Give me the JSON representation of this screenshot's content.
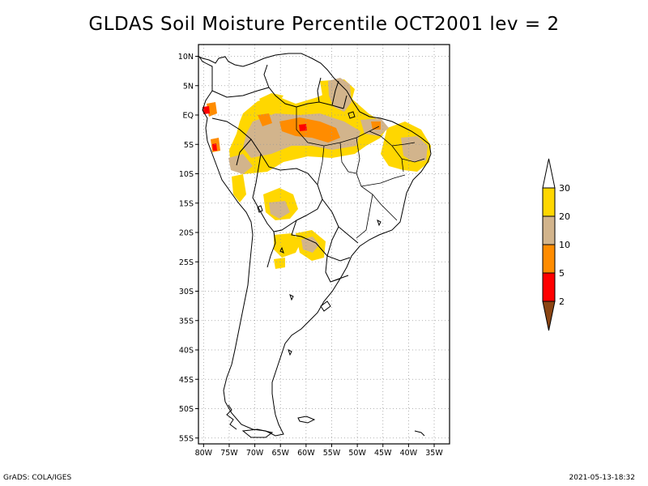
{
  "title": "GLDAS Soil Moisture Percentile OCT2001 lev = 2",
  "map": {
    "lon_range": [
      -81,
      -32
    ],
    "lat_range": [
      -56,
      12
    ],
    "lat_ticks": [
      {
        "v": 10,
        "label": "10N"
      },
      {
        "v": 5,
        "label": "5N"
      },
      {
        "v": 0,
        "label": "EQ"
      },
      {
        "v": -5,
        "label": "5S"
      },
      {
        "v": -10,
        "label": "10S"
      },
      {
        "v": -15,
        "label": "15S"
      },
      {
        "v": -20,
        "label": "20S"
      },
      {
        "v": -25,
        "label": "25S"
      },
      {
        "v": -30,
        "label": "30S"
      },
      {
        "v": -35,
        "label": "35S"
      },
      {
        "v": -40,
        "label": "40S"
      },
      {
        "v": -45,
        "label": "45S"
      },
      {
        "v": -50,
        "label": "50S"
      },
      {
        "v": -55,
        "label": "55S"
      }
    ],
    "lon_ticks": [
      {
        "v": -80,
        "label": "80W"
      },
      {
        "v": -75,
        "label": "75W"
      },
      {
        "v": -70,
        "label": "70W"
      },
      {
        "v": -65,
        "label": "65W"
      },
      {
        "v": -60,
        "label": "60W"
      },
      {
        "v": -55,
        "label": "55W"
      },
      {
        "v": -50,
        "label": "50W"
      },
      {
        "v": -45,
        "label": "45W"
      },
      {
        "v": -40,
        "label": "40W"
      },
      {
        "v": -35,
        "label": "35W"
      }
    ],
    "grid": "dotted"
  },
  "legend": {
    "bins": [
      {
        "color": "#8b4513",
        "label": "2"
      },
      {
        "color": "#ff0000",
        "label": "5"
      },
      {
        "color": "#ff8c00",
        "label": "10"
      },
      {
        "color": "#d2b48c",
        "label": "20"
      },
      {
        "color": "#ffd700",
        "label": "30"
      },
      {
        "color": "#ffffff",
        "label": ""
      }
    ]
  },
  "footer": {
    "left": "GrADS: COLA/IGES",
    "right": "2021-05-13-18:32"
  }
}
